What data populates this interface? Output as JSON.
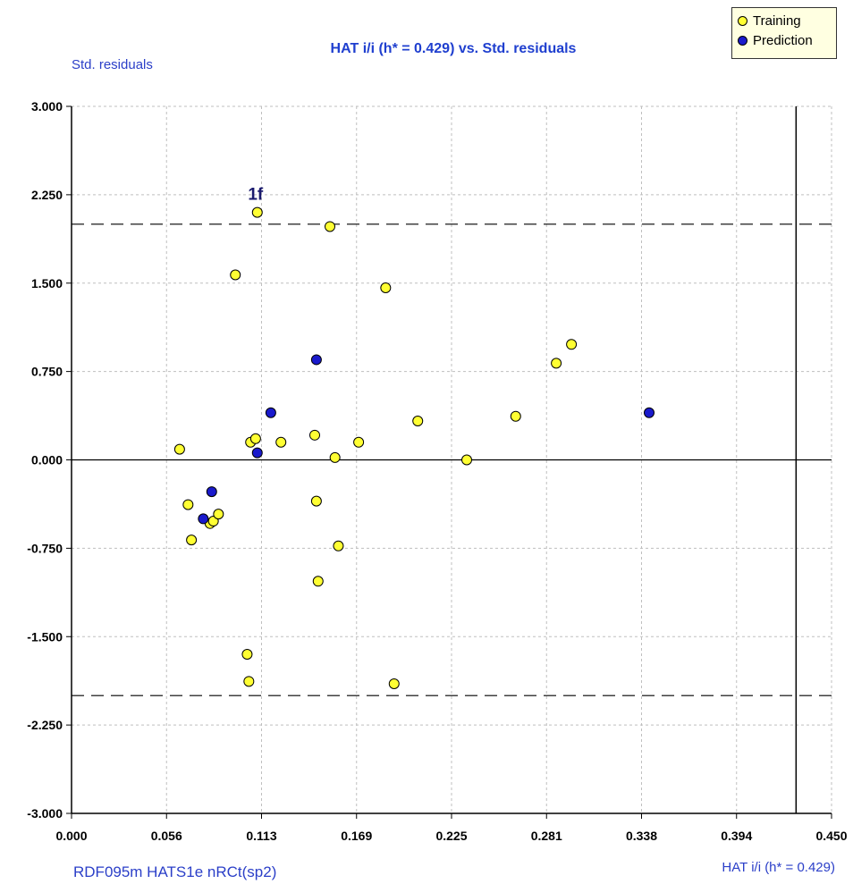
{
  "title": "HAT i/i (h* = 0.429) vs. Std. residuals",
  "y_axis_label": "Std. residuals",
  "x_axis_label": "HAT i/i (h* = 0.429)",
  "footer_label": "RDF095m HATS1e nRCt(sp2)",
  "legend": {
    "training_label": "Training",
    "prediction_label": "Prediction",
    "training_color": "#ffff33",
    "prediction_color": "#1a1acc"
  },
  "chart_data": {
    "type": "scatter",
    "title": "HAT i/i (h* = 0.429) vs. Std. residuals",
    "xlabel": "HAT i/i (h* = 0.429)",
    "ylabel": "Std. residuals",
    "xlim": [
      0.0,
      0.45
    ],
    "ylim": [
      -3.0,
      3.0
    ],
    "x_ticks": [
      "0.000",
      "0.056",
      "0.113",
      "0.169",
      "0.225",
      "0.281",
      "0.338",
      "0.394",
      "0.450"
    ],
    "y_ticks": [
      "3.000",
      "2.250",
      "1.500",
      "0.750",
      "0.000",
      "-0.750",
      "-1.500",
      "-2.250",
      "-3.000"
    ],
    "grid": true,
    "legend_position": "top-right",
    "reference_lines": {
      "h_star": 0.429,
      "residual_limits": [
        2.0,
        -2.0
      ]
    },
    "annotations": [
      {
        "text": "1f",
        "x": 0.11,
        "y": 2.1
      }
    ],
    "series": [
      {
        "name": "Training",
        "color": "#ffff33",
        "points": [
          [
            0.064,
            0.09
          ],
          [
            0.069,
            -0.38
          ],
          [
            0.071,
            -0.68
          ],
          [
            0.082,
            -0.54
          ],
          [
            0.084,
            -0.52
          ],
          [
            0.087,
            -0.46
          ],
          [
            0.097,
            1.57
          ],
          [
            0.104,
            -1.65
          ],
          [
            0.105,
            -1.88
          ],
          [
            0.106,
            0.15
          ],
          [
            0.109,
            0.18
          ],
          [
            0.11,
            2.1
          ],
          [
            0.124,
            0.15
          ],
          [
            0.144,
            0.21
          ],
          [
            0.145,
            -0.35
          ],
          [
            0.146,
            -1.03
          ],
          [
            0.153,
            1.98
          ],
          [
            0.156,
            0.02
          ],
          [
            0.158,
            -0.73
          ],
          [
            0.17,
            0.15
          ],
          [
            0.186,
            1.46
          ],
          [
            0.191,
            -1.9
          ],
          [
            0.205,
            0.33
          ],
          [
            0.234,
            0.0
          ],
          [
            0.263,
            0.37
          ],
          [
            0.287,
            0.82
          ],
          [
            0.296,
            0.98
          ]
        ]
      },
      {
        "name": "Prediction",
        "color": "#1a1acc",
        "points": [
          [
            0.078,
            -0.5
          ],
          [
            0.083,
            -0.27
          ],
          [
            0.11,
            0.06
          ],
          [
            0.118,
            0.4
          ],
          [
            0.145,
            0.85
          ],
          [
            0.342,
            0.4
          ]
        ]
      }
    ]
  }
}
